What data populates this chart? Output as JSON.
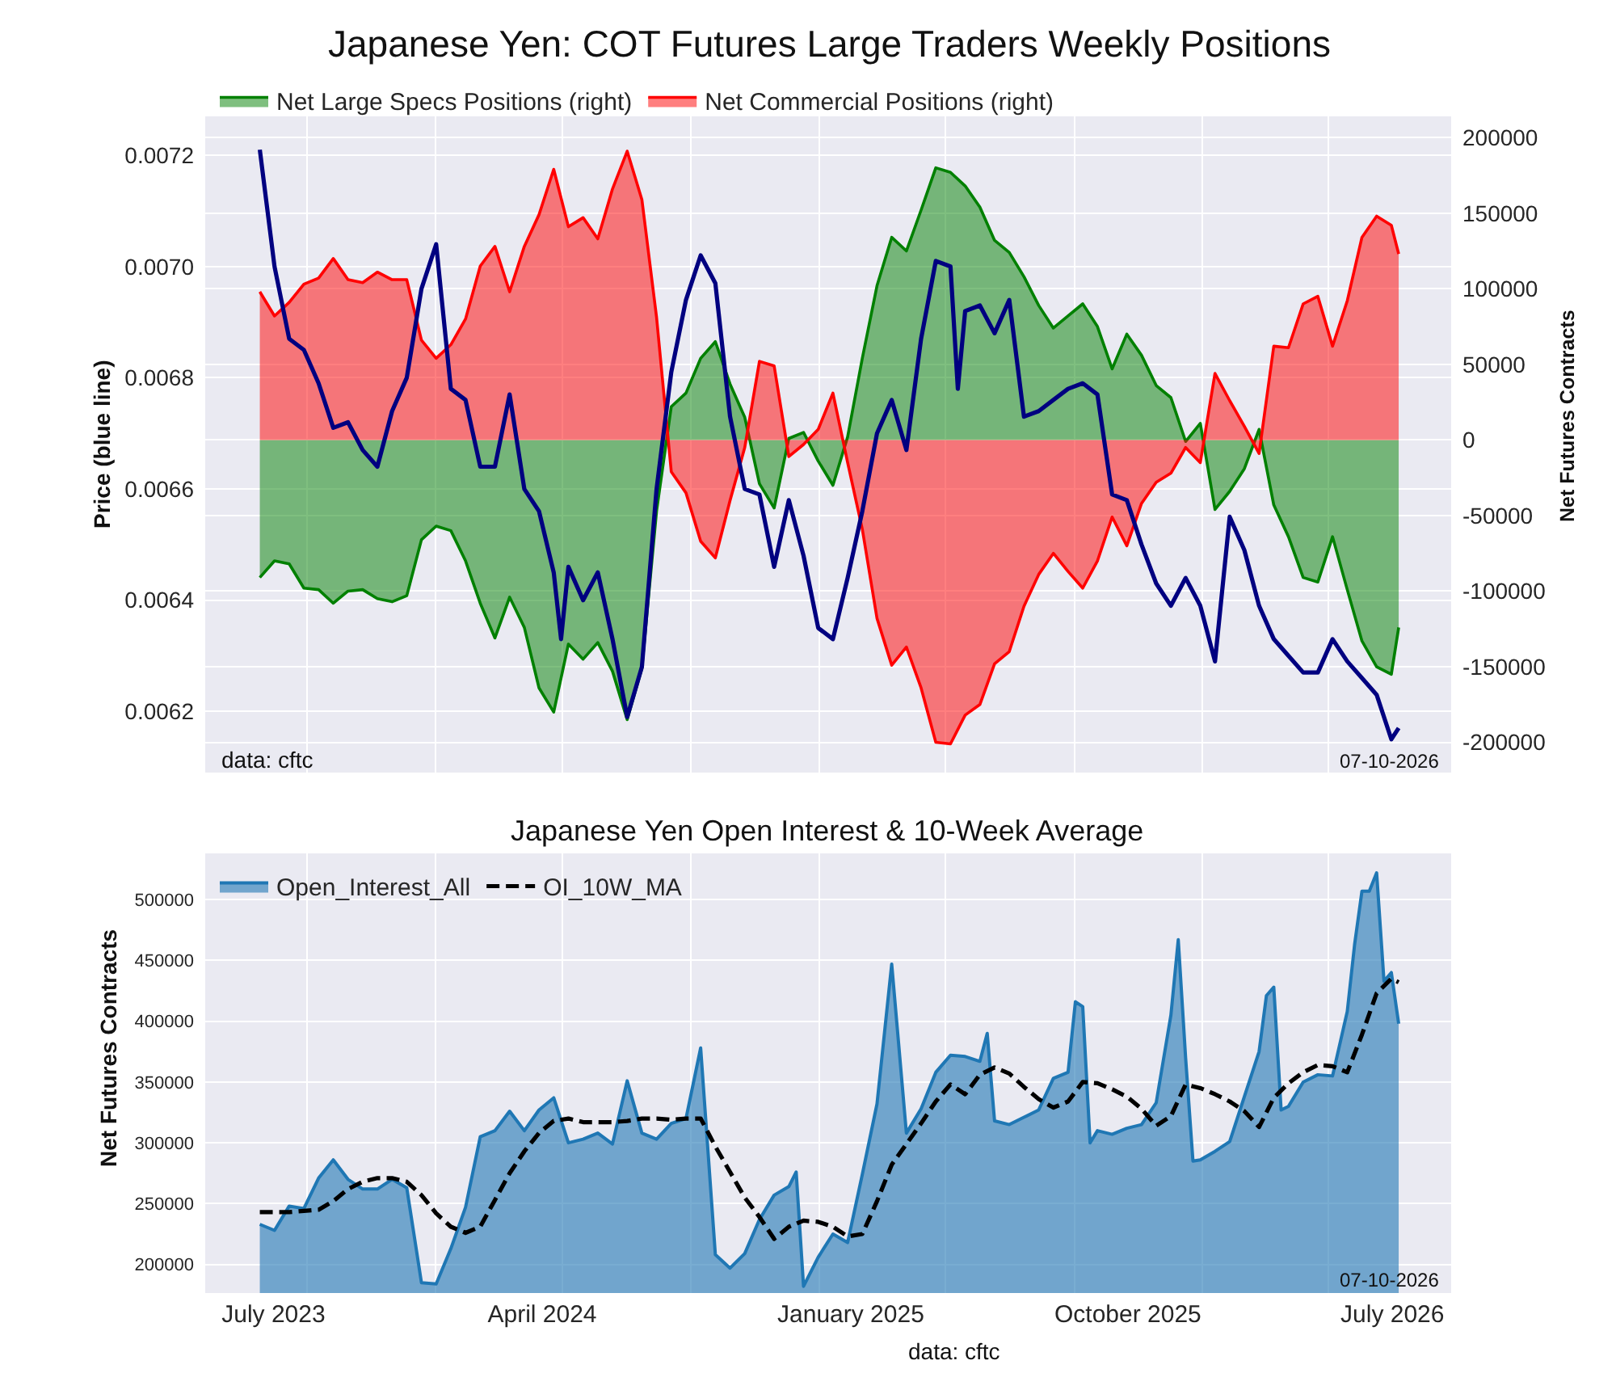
{
  "chart_data": [
    {
      "type": "area",
      "title": "Japanese Yen: COT Futures Large Traders Weekly Positions",
      "ylabel": "Price (blue line)",
      "y2label": "Net Futures Contracts",
      "x": [
        "2023-07-18",
        "2023-08-01",
        "2023-08-15",
        "2023-08-29",
        "2023-09-12",
        "2023-09-26",
        "2023-10-10",
        "2023-10-24",
        "2023-11-07",
        "2023-11-21",
        "2023-12-05",
        "2023-12-19",
        "2024-01-02",
        "2024-01-16",
        "2024-01-30",
        "2024-02-13",
        "2024-02-27",
        "2024-03-12",
        "2024-03-26",
        "2024-04-09",
        "2024-04-23",
        "2024-05-07",
        "2024-05-21",
        "2024-06-04",
        "2024-06-18",
        "2024-07-02",
        "2024-07-16",
        "2024-07-30",
        "2024-08-13",
        "2024-08-27",
        "2024-09-10",
        "2024-09-24",
        "2024-10-08",
        "2024-10-22",
        "2024-11-05",
        "2024-11-19",
        "2024-12-03",
        "2024-12-17",
        "2024-12-31",
        "2025-01-14",
        "2025-01-28",
        "2025-02-11",
        "2025-02-25",
        "2025-03-11",
        "2025-03-25",
        "2025-04-08",
        "2025-04-22",
        "2025-05-06",
        "2025-05-20",
        "2025-06-03",
        "2025-06-17",
        "2025-07-01",
        "2025-07-15",
        "2025-07-29",
        "2025-08-12",
        "2025-08-26",
        "2025-09-09",
        "2025-09-23",
        "2025-10-07",
        "2025-10-21",
        "2025-11-04",
        "2025-11-18",
        "2025-12-02",
        "2025-12-16",
        "2025-12-30",
        "2026-01-13",
        "2026-01-27",
        "2026-02-10",
        "2026-02-24",
        "2026-03-10",
        "2026-03-24",
        "2026-04-07",
        "2026-04-21",
        "2026-05-05",
        "2026-05-19",
        "2026-06-02",
        "2026-06-16",
        "2026-06-30",
        "2026-07-07"
      ],
      "series": [
        {
          "type": "line",
          "color": "#000080",
          "x": [
            "2023-07-18",
            "2023-08-01",
            "2023-08-15",
            "2023-08-29",
            "2023-09-12",
            "2023-09-26",
            "2023-10-10",
            "2023-10-24",
            "2023-11-07",
            "2023-11-21",
            "2023-12-05",
            "2023-12-19",
            "2024-01-02",
            "2024-01-16",
            "2024-01-30",
            "2024-02-13",
            "2024-02-27",
            "2024-03-12",
            "2024-03-26",
            "2024-04-09",
            "2024-04-23",
            "2024-04-30",
            "2024-05-07",
            "2024-05-21",
            "2024-06-04",
            "2024-06-18",
            "2024-07-02",
            "2024-07-16",
            "2024-07-30",
            "2024-08-13",
            "2024-08-27",
            "2024-09-10",
            "2024-09-24",
            "2024-10-08",
            "2024-10-22",
            "2024-11-05",
            "2024-11-19",
            "2024-12-03",
            "2024-12-17",
            "2024-12-31",
            "2025-01-14",
            "2025-01-28",
            "2025-02-11",
            "2025-02-25",
            "2025-03-11",
            "2025-03-25",
            "2025-04-08",
            "2025-04-22",
            "2025-05-06",
            "2025-05-13",
            "2025-05-20",
            "2025-06-03",
            "2025-06-17",
            "2025-07-01",
            "2025-07-15",
            "2025-07-29",
            "2025-08-12",
            "2025-08-26",
            "2025-09-09",
            "2025-09-23",
            "2025-10-07",
            "2025-10-21",
            "2025-11-04",
            "2025-11-18",
            "2025-12-02",
            "2025-12-16",
            "2025-12-30",
            "2026-01-13",
            "2026-01-27",
            "2026-02-10",
            "2026-02-24",
            "2026-03-10",
            "2026-03-24",
            "2026-04-07",
            "2026-04-21",
            "2026-05-05",
            "2026-05-19",
            "2026-06-02",
            "2026-06-16",
            "2026-06-30",
            "2026-07-07"
          ],
          "values": [
            0.00721,
            0.007,
            0.00687,
            0.00685,
            0.00679,
            0.00671,
            0.00672,
            0.00667,
            0.00664,
            0.00674,
            0.0068,
            0.00696,
            0.00704,
            0.00678,
            0.00676,
            0.00664,
            0.00664,
            0.00677,
            0.0066,
            0.00656,
            0.00645,
            0.00633,
            0.00646,
            0.0064,
            0.00645,
            0.00633,
            0.00619,
            0.00628,
            0.0066,
            0.00681,
            0.00694,
            0.00702,
            0.00697,
            0.00673,
            0.0066,
            0.00659,
            0.00646,
            0.00658,
            0.00648,
            0.00635,
            0.00633,
            0.00644,
            0.00656,
            0.0067,
            0.00676,
            0.00667,
            0.00687,
            0.00701,
            0.007,
            0.00678,
            0.00692,
            0.00693,
            0.00688,
            0.00694,
            0.00673,
            0.00674,
            0.00676,
            0.00678,
            0.00679,
            0.00677,
            0.00659,
            0.00658,
            0.0065,
            0.00643,
            0.00639,
            0.00644,
            0.00639,
            0.00629,
            0.00655,
            0.00649,
            0.00639,
            0.00633,
            0.0063,
            0.00627,
            0.00627,
            0.00633,
            0.00629,
            0.00626,
            0.00623,
            0.00615,
            0.00617
          ]
        },
        {
          "name": "Net Large Specs Positions (right)",
          "color": "#008000",
          "axis": "y2",
          "values": [
            -91000,
            -80000,
            -82000,
            -98000,
            -99000,
            -108000,
            -100000,
            -99000,
            -105000,
            -107000,
            -103000,
            -66000,
            -57000,
            -60000,
            -80000,
            -108000,
            -131000,
            -104000,
            -124000,
            -164000,
            -180000,
            -135000,
            -145000,
            -134000,
            -153000,
            -185000,
            -151000,
            -47000,
            22000,
            31000,
            54000,
            65000,
            37000,
            15000,
            -29000,
            -45000,
            1000,
            5000,
            -14000,
            -30000,
            2000,
            54000,
            102000,
            134000,
            125000,
            152000,
            180000,
            177000,
            168000,
            154000,
            132000,
            124000,
            108000,
            89000,
            74000,
            82000,
            90000,
            75000,
            47000,
            70000,
            56000,
            36000,
            28000,
            -1000,
            11000,
            -46000,
            -34000,
            -19000,
            7000,
            -43000,
            -64000,
            -91000,
            -94000,
            -64000,
            -99000,
            -133000,
            -150000,
            -155000,
            -124000
          ]
        },
        {
          "name": "Net Commercial Positions (right)",
          "color": "#ff0000",
          "axis": "y2",
          "values": [
            98000,
            82000,
            91000,
            103000,
            107000,
            120000,
            106000,
            104000,
            111000,
            106000,
            106000,
            66000,
            54000,
            63000,
            80000,
            115000,
            128000,
            98000,
            128000,
            149000,
            179000,
            141000,
            147000,
            133000,
            166000,
            191000,
            159000,
            81000,
            -21000,
            -35000,
            -67000,
            -78000,
            -40000,
            -5000,
            52000,
            49000,
            -11000,
            -3000,
            7000,
            31000,
            -15000,
            -59000,
            -118000,
            -149000,
            -137000,
            -164000,
            -200000,
            -201000,
            -182000,
            -175000,
            -148000,
            -140000,
            -110000,
            -89000,
            -75000,
            -87000,
            -98000,
            -80000,
            -51000,
            -70000,
            -42000,
            -28000,
            -22000,
            -5000,
            -15000,
            44000,
            26000,
            9000,
            -9000,
            62000,
            61000,
            90000,
            95000,
            62000,
            92000,
            134000,
            148000,
            142000,
            123000
          ]
        }
      ],
      "xlim": [
        "2023-05-27",
        "2026-08-26"
      ],
      "xticks": [
        {
          "value": "2023-09-01",
          "label": null
        },
        {
          "value": "2024-01-01",
          "label": null
        },
        {
          "value": "2024-05-01",
          "label": null
        },
        {
          "value": "2024-09-01",
          "label": null
        },
        {
          "value": "2025-01-01",
          "label": null
        },
        {
          "value": "2025-05-01",
          "label": null
        },
        {
          "value": "2025-09-01",
          "label": null
        },
        {
          "value": "2026-01-01",
          "label": null
        },
        {
          "value": "2026-05-01",
          "label": null
        }
      ],
      "ylim": [
        0.00609,
        0.00727
      ],
      "yticks": [
        0.0062,
        0.0064,
        0.0066,
        0.0068,
        {
          "value": 0.007,
          "label": "0.0070"
        },
        0.0072
      ],
      "y2lim": [
        -220000,
        214000
      ],
      "y2ticks": [
        -200000,
        -150000,
        -100000,
        -50000,
        0,
        50000,
        100000,
        150000,
        200000
      ],
      "tick_labels": "y",
      "grid": true,
      "legend": "top left",
      "annotations": [
        "data: cftc",
        "07-10-2026"
      ]
    },
    {
      "type": "area",
      "title": "Japanese Yen Open Interest & 10-Week Average",
      "ylabel": "Net Futures Contracts",
      "x": [
        "2023-07-18",
        "2023-08-01",
        "2023-08-15",
        "2023-08-29",
        "2023-09-12",
        "2023-09-26",
        "2023-10-10",
        "2023-10-24",
        "2023-11-07",
        "2023-11-21",
        "2023-12-05",
        "2023-12-19",
        "2024-01-02",
        "2024-01-16",
        "2024-01-30",
        "2024-02-13",
        "2024-02-27",
        "2024-03-12",
        "2024-03-26",
        "2024-04-09",
        "2024-04-23",
        "2024-05-07",
        "2024-05-21",
        "2024-06-04",
        "2024-06-18",
        "2024-07-02",
        "2024-07-16",
        "2024-07-30",
        "2024-08-13",
        "2024-08-27",
        "2024-09-10",
        "2024-09-24",
        "2024-10-08",
        "2024-10-22",
        "2024-11-05",
        "2024-11-19",
        "2024-12-03",
        "2024-12-17",
        "2024-12-31",
        "2025-01-14",
        "2025-01-28",
        "2025-02-11",
        "2025-02-25",
        "2025-03-11",
        "2025-03-25",
        "2025-04-08",
        "2025-04-22",
        "2025-05-06",
        "2025-05-20",
        "2025-06-03",
        "2025-06-17",
        "2025-07-01",
        "2025-07-15",
        "2025-07-29",
        "2025-08-12",
        "2025-08-26",
        "2025-09-09",
        "2025-09-23",
        "2025-10-07",
        "2025-10-21",
        "2025-11-04",
        "2025-11-18",
        "2025-12-02",
        "2025-12-16",
        "2025-12-30",
        "2026-01-13",
        "2026-01-27",
        "2026-02-10",
        "2026-02-24",
        "2026-03-10",
        "2026-03-24",
        "2026-04-07",
        "2026-04-21",
        "2026-05-05",
        "2026-05-19",
        "2026-06-02",
        "2026-06-16",
        "2026-06-30",
        "2026-07-07"
      ],
      "series": [
        {
          "name": "Open_Interest_All",
          "color": "#1f77b4",
          "x": [
            "2023-07-18",
            "2023-08-01",
            "2023-08-15",
            "2023-08-29",
            "2023-09-12",
            "2023-09-26",
            "2023-10-10",
            "2023-10-24",
            "2023-11-07",
            "2023-11-21",
            "2023-12-05",
            "2023-12-19",
            "2024-01-02",
            "2024-01-16",
            "2024-01-30",
            "2024-02-13",
            "2024-02-27",
            "2024-03-12",
            "2024-03-26",
            "2024-04-09",
            "2024-04-23",
            "2024-05-07",
            "2024-05-21",
            "2024-06-04",
            "2024-06-18",
            "2024-07-02",
            "2024-07-16",
            "2024-07-30",
            "2024-08-13",
            "2024-08-27",
            "2024-09-10",
            "2024-09-24",
            "2024-10-08",
            "2024-10-22",
            "2024-11-05",
            "2024-11-19",
            "2024-12-03",
            "2024-12-10",
            "2024-12-17",
            "2024-12-31",
            "2025-01-14",
            "2025-01-28",
            "2025-02-11",
            "2025-02-25",
            "2025-03-11",
            "2025-03-25",
            "2025-04-08",
            "2025-04-22",
            "2025-05-06",
            "2025-05-20",
            "2025-06-03",
            "2025-06-10",
            "2025-06-17",
            "2025-07-01",
            "2025-07-15",
            "2025-07-29",
            "2025-08-12",
            "2025-08-26",
            "2025-09-02",
            "2025-09-09",
            "2025-09-16",
            "2025-09-23",
            "2025-10-07",
            "2025-10-21",
            "2025-11-04",
            "2025-11-18",
            "2025-12-02",
            "2025-12-09",
            "2025-12-16",
            "2025-12-23",
            "2025-12-30",
            "2026-01-13",
            "2026-01-27",
            "2026-02-10",
            "2026-02-24",
            "2026-03-03",
            "2026-03-10",
            "2026-03-17",
            "2026-03-24",
            "2026-04-07",
            "2026-04-21",
            "2026-05-05",
            "2026-05-19",
            "2026-05-26",
            "2026-06-02",
            "2026-06-09",
            "2026-06-16",
            "2026-06-23",
            "2026-06-30",
            "2026-07-07"
          ],
          "values": [
            233000,
            228000,
            248000,
            246000,
            271000,
            286000,
            270000,
            262000,
            262000,
            270000,
            263000,
            185000,
            184000,
            213000,
            247000,
            305000,
            310000,
            326000,
            310000,
            327000,
            337000,
            300000,
            303000,
            308000,
            299000,
            351000,
            308000,
            303000,
            316000,
            320000,
            378000,
            208000,
            197000,
            209000,
            237000,
            257000,
            264000,
            276000,
            182000,
            206000,
            225000,
            218000,
            274000,
            332000,
            447000,
            308000,
            328000,
            358000,
            372000,
            371000,
            367000,
            390000,
            318000,
            315000,
            321000,
            327000,
            353000,
            358000,
            416000,
            412000,
            300000,
            310000,
            307000,
            312000,
            315000,
            333000,
            405000,
            467000,
            370000,
            285000,
            286000,
            293000,
            301000,
            338000,
            375000,
            421000,
            428000,
            327000,
            330000,
            350000,
            356000,
            355000,
            408000,
            463000,
            507000,
            507000,
            522000,
            433000,
            440000,
            398000
          ]
        },
        {
          "name": "OI_10W_MA",
          "type": "line",
          "color": "#000000",
          "line_style": "dashed",
          "values": [
            243000,
            243000,
            243000,
            244000,
            245000,
            252000,
            262000,
            268000,
            271000,
            271000,
            268000,
            257000,
            242000,
            231000,
            226000,
            231000,
            253000,
            275000,
            293000,
            308000,
            318000,
            320000,
            317000,
            317000,
            317000,
            318000,
            320000,
            320000,
            319000,
            320000,
            320000,
            297000,
            276000,
            255000,
            239000,
            221000,
            231000,
            236000,
            235000,
            231000,
            223000,
            225000,
            252000,
            282000,
            299000,
            316000,
            334000,
            348000,
            340000,
            356000,
            362000,
            357000,
            346000,
            336000,
            329000,
            334000,
            350000,
            349000,
            344000,
            338000,
            328000,
            314000,
            322000,
            348000,
            345000,
            340000,
            334000,
            326000,
            313000,
            337000,
            349000,
            358000,
            364000,
            363000,
            358000,
            389000,
            423000,
            435000,
            432000
          ]
        }
      ],
      "xlim": [
        "2023-05-27",
        "2026-08-26"
      ],
      "xticks": [
        {
          "value": "2023-07-31",
          "label": "July 2023"
        },
        {
          "value": "2023-09-01",
          "label": null
        },
        {
          "value": "2024-01-01",
          "label": null
        },
        {
          "value": "2024-04-12",
          "label": "April 2024"
        },
        {
          "value": "2024-05-01",
          "label": null
        },
        {
          "value": "2024-09-01",
          "label": null
        },
        {
          "value": "2025-01-01",
          "label": null
        },
        {
          "value": "2025-01-31",
          "label": "January 2025"
        },
        {
          "value": "2025-05-01",
          "label": null
        },
        {
          "value": "2025-09-01",
          "label": null
        },
        {
          "value": "2025-10-22",
          "label": "October 2025"
        },
        {
          "value": "2026-01-01",
          "label": null
        },
        {
          "value": "2026-05-01",
          "label": null
        },
        {
          "value": "2026-07-01",
          "label": "July 2026"
        }
      ],
      "ylim": [
        176500,
        538000
      ],
      "yticks": [
        200000,
        250000,
        300000,
        350000,
        400000,
        450000,
        500000
      ],
      "grid": true,
      "legend": "top left",
      "annotations": [
        "07-10-2026",
        "data: cftc"
      ]
    }
  ]
}
